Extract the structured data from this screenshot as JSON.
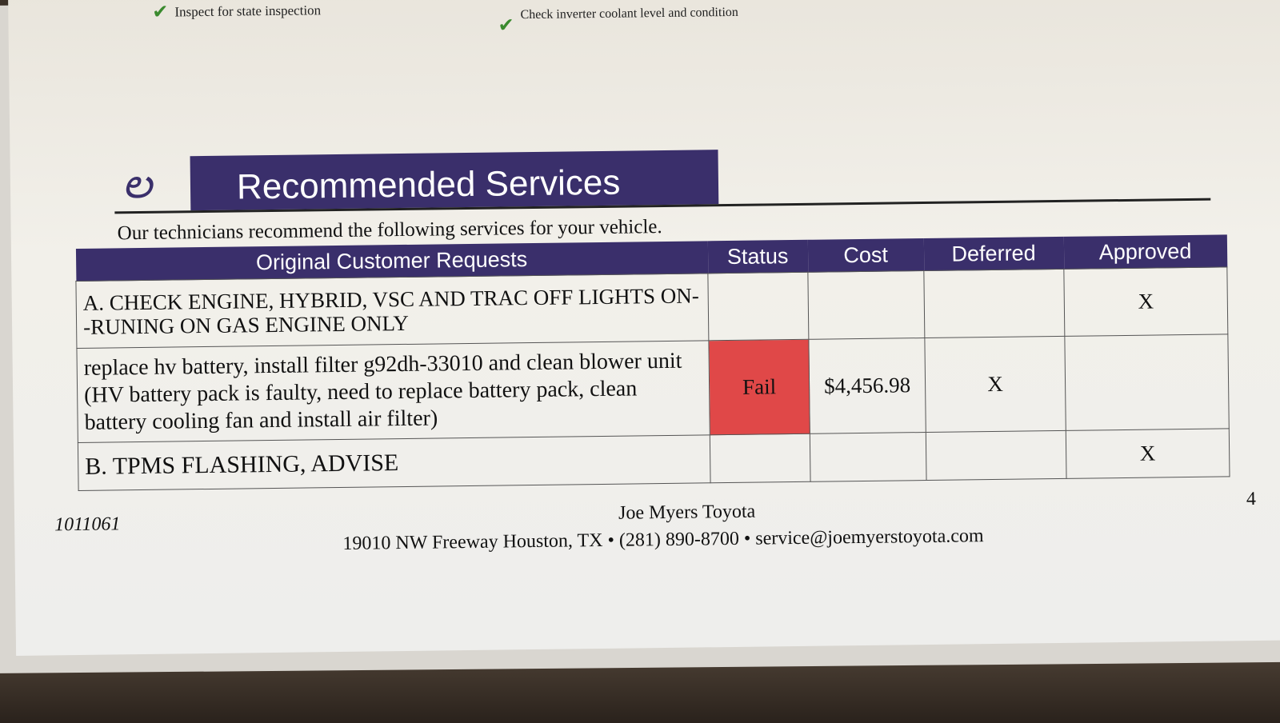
{
  "checklist": [
    {
      "label": "Inspect for state inspection",
      "checked": true
    },
    {
      "label": "Check inverter coolant level and condition",
      "checked": true
    }
  ],
  "section": {
    "logo_icon": "stethoscope-icon",
    "title": "Recommended Services",
    "intro": "Our technicians recommend the following services for your vehicle.",
    "header_color": "#3a2f6b"
  },
  "table": {
    "headers": [
      "Original Customer Requests",
      "Status",
      "Cost",
      "Deferred",
      "Approved"
    ],
    "rows": [
      {
        "request": "A. CHECK ENGINE, HYBRID, VSC AND TRAC OFF LIGHTS ON--RUNING ON GAS ENGINE ONLY",
        "status": "",
        "cost": "",
        "deferred": "",
        "approved": "X"
      },
      {
        "request": "replace hv battery, install filter g92dh-33010 and clean blower unit (HV battery pack is faulty, need to replace battery pack, clean battery cooling fan and install air filter)",
        "status": "Fail",
        "status_color": "#e04848",
        "cost": "$4,456.98",
        "deferred": "X",
        "approved": ""
      },
      {
        "request": "B. TPMS FLASHING, ADVISE",
        "status": "",
        "cost": "",
        "deferred": "",
        "approved": "X"
      }
    ]
  },
  "footer": {
    "ro_number": "1011061",
    "dealer": "Joe Myers Toyota",
    "address": "19010 NW Freeway Houston, TX • (281) 890-8700 • service@joemyerstoyota.com",
    "page": "4"
  }
}
